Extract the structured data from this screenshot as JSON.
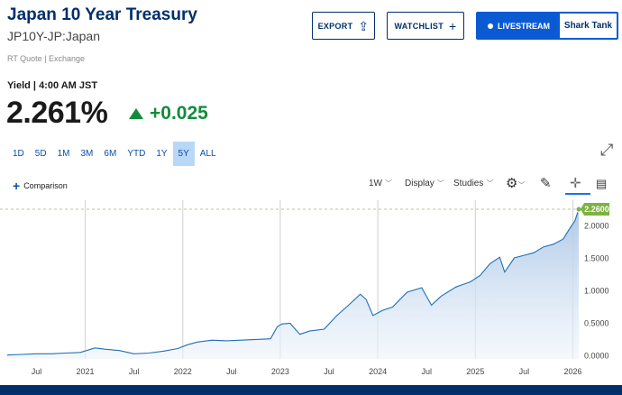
{
  "header": {
    "title": "Japan 10 Year Treasury",
    "symbol": "JP10Y-JP:Japan",
    "quote_source": "RT Quote | Exchange"
  },
  "actions": {
    "export_label": "EXPORT",
    "watchlist_label": "WATCHLIST",
    "livestream_label": "LIVESTREAM",
    "livestream_show": "Shark Tank"
  },
  "quote": {
    "yield_label": "Yield | 4:00 AM JST",
    "price": "2.261%",
    "change": "+0.025"
  },
  "ranges": [
    "1D",
    "5D",
    "1M",
    "3M",
    "6M",
    "YTD",
    "1Y",
    "5Y",
    "ALL"
  ],
  "active_range": "5Y",
  "toolbar": {
    "comparison_label": "Comparison",
    "interval_label": "1W",
    "display_label": "Display",
    "studies_label": "Studies"
  },
  "icons": {
    "export": "share-icon",
    "watchlist": "plus-icon",
    "expand": "expand-icon",
    "settings": "gear-icon",
    "draw": "pencil-icon",
    "crosshair": "crosshair-icon",
    "comment": "comment-icon"
  },
  "colors": {
    "brand": "#002f6c",
    "accent": "#0a5bd3",
    "positive": "#138b3c",
    "line": "#1f6fb5",
    "fill": "#c5d9ef",
    "last_value_marker": "#7cb342"
  },
  "chart_data": {
    "type": "area",
    "x_tick_labels": [
      "Jul",
      "2021",
      "Jul",
      "2022",
      "Jul",
      "2023",
      "Jul",
      "2024",
      "Jul",
      "2025",
      "Jul",
      "2026"
    ],
    "y_tick_labels": [
      "0.0000",
      "0.5000",
      "1.0000",
      "1.5000",
      "2.0000"
    ],
    "ylim": [
      -0.05,
      2.4
    ],
    "last_value_label": "2.2600",
    "last_value": 2.26,
    "grid": "vertical at year boundaries",
    "series": [
      {
        "x": [
          2020.2,
          2020.35,
          2020.5,
          2020.65,
          2020.8,
          2020.95,
          2021.1,
          2021.2,
          2021.35,
          2021.5,
          2021.65,
          2021.8,
          2021.95,
          2022.05,
          2022.15,
          2022.3,
          2022.45,
          2022.6,
          2022.75,
          2022.9,
          2022.97,
          2023.02,
          2023.1,
          2023.2,
          2023.3,
          2023.45,
          2023.58,
          2023.7,
          2023.82,
          2023.88,
          2023.95,
          2024.05,
          2024.15,
          2024.3,
          2024.45,
          2024.55,
          2024.65,
          2024.8,
          2024.95,
          2025.05,
          2025.15,
          2025.25,
          2025.3,
          2025.4,
          2025.5,
          2025.6,
          2025.7,
          2025.8,
          2025.9,
          2025.97,
          2026.02,
          2026.06
        ],
        "y": [
          0.01,
          0.02,
          0.03,
          0.03,
          0.04,
          0.05,
          0.12,
          0.1,
          0.08,
          0.03,
          0.04,
          0.07,
          0.11,
          0.17,
          0.21,
          0.24,
          0.23,
          0.24,
          0.25,
          0.26,
          0.45,
          0.49,
          0.5,
          0.33,
          0.38,
          0.41,
          0.62,
          0.78,
          0.95,
          0.87,
          0.62,
          0.7,
          0.75,
          0.98,
          1.05,
          0.78,
          0.92,
          1.06,
          1.14,
          1.24,
          1.42,
          1.52,
          1.29,
          1.51,
          1.55,
          1.59,
          1.68,
          1.72,
          1.8,
          1.97,
          2.08,
          2.26
        ]
      }
    ]
  }
}
